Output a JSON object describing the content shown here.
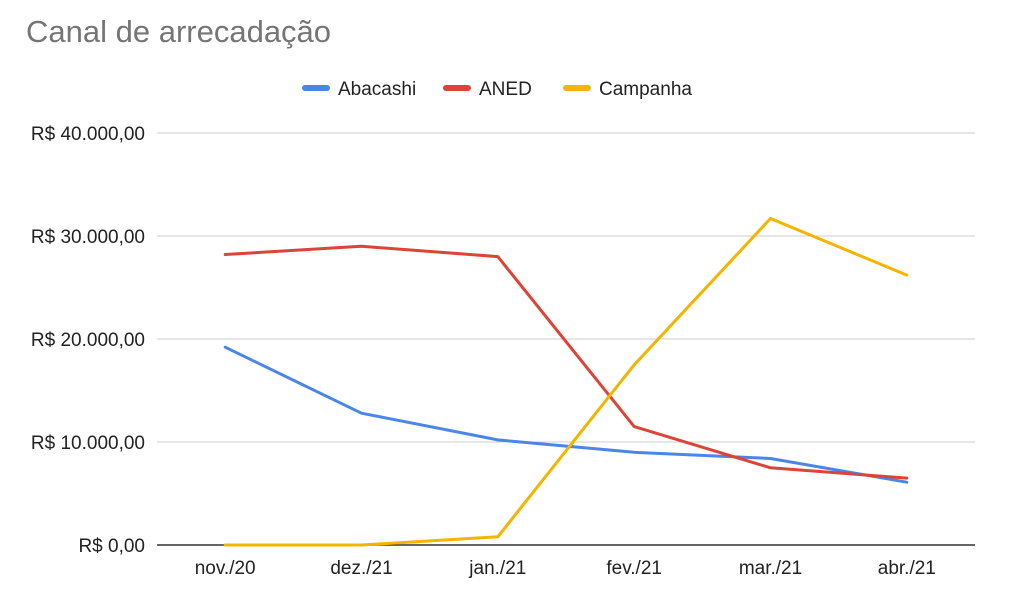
{
  "chart_data": {
    "type": "line",
    "title": "Canal de arrecadação",
    "xlabel": "",
    "ylabel": "",
    "categories": [
      "nov./20",
      "dez./21",
      "jan./21",
      "fev./21",
      "mar./21",
      "abr./21"
    ],
    "ylim": [
      0,
      40000
    ],
    "yticks": [
      0,
      10000,
      20000,
      30000,
      40000
    ],
    "ytick_labels": [
      "R$ 0,00",
      "R$ 10.000,00",
      "R$ 20.000,00",
      "R$ 30.000,00",
      "R$ 40.000,00"
    ],
    "grid": true,
    "legend_position": "top-center",
    "series": [
      {
        "name": "Abacashi",
        "color": "#4a86e8",
        "values": [
          19200,
          12800,
          10200,
          9000,
          8400,
          6100
        ]
      },
      {
        "name": "ANED",
        "color": "#db4437",
        "values": [
          28200,
          29000,
          28000,
          11500,
          7500,
          6500
        ]
      },
      {
        "name": "Campanha",
        "color": "#f4b400",
        "values": [
          0,
          0,
          800,
          17500,
          31700,
          26200
        ]
      }
    ]
  }
}
